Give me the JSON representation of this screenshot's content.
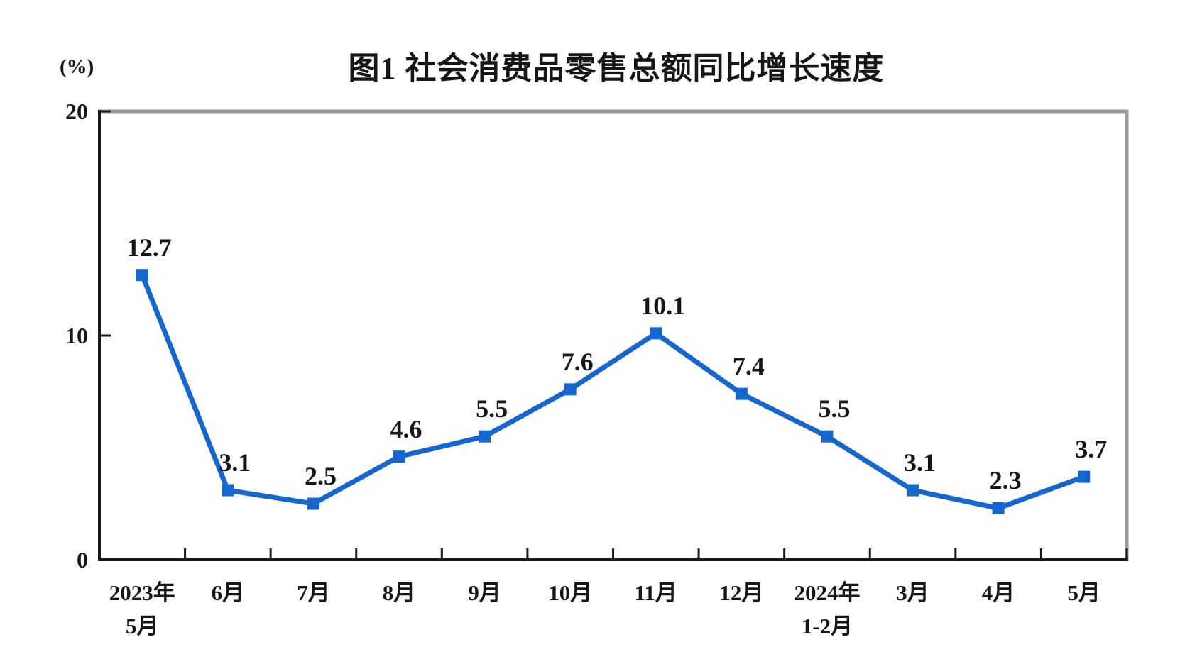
{
  "title": "图1 社会消费品零售总额同比增长速度",
  "unit_label": "(%)",
  "colors": {
    "series_blue": "#1566CD",
    "axis_black": "#1a1a1a",
    "border_gray": "#9a9a9a",
    "text": "#161616",
    "background": "#ffffff"
  },
  "chart_data": {
    "type": "line",
    "title": "图1 社会消费品零售总额同比增长速度",
    "unit": "(%)",
    "categories": [
      {
        "lines": [
          "2023年",
          "5月"
        ]
      },
      {
        "lines": [
          "6月"
        ]
      },
      {
        "lines": [
          "7月"
        ]
      },
      {
        "lines": [
          "8月"
        ]
      },
      {
        "lines": [
          "9月"
        ]
      },
      {
        "lines": [
          "10月"
        ]
      },
      {
        "lines": [
          "11月"
        ]
      },
      {
        "lines": [
          "12月"
        ]
      },
      {
        "lines": [
          "2024年",
          "1-2月"
        ]
      },
      {
        "lines": [
          "3月"
        ]
      },
      {
        "lines": [
          "4月"
        ]
      },
      {
        "lines": [
          "5月"
        ]
      }
    ],
    "values": [
      12.7,
      3.1,
      2.5,
      4.6,
      5.5,
      7.6,
      10.1,
      7.4,
      5.5,
      3.1,
      2.3,
      3.7
    ],
    "point_labels": [
      "12.7",
      "3.1",
      "2.5",
      "4.6",
      "5.5",
      "7.6",
      "10.1",
      "7.4",
      "5.5",
      "3.1",
      "2.3",
      "3.7"
    ],
    "ylabel": "(%)",
    "ylim": [
      0,
      20
    ],
    "y_ticks": [
      0,
      10,
      20
    ],
    "grid": false,
    "legend": "none",
    "marker": "square",
    "line_color": "#1566CD"
  }
}
